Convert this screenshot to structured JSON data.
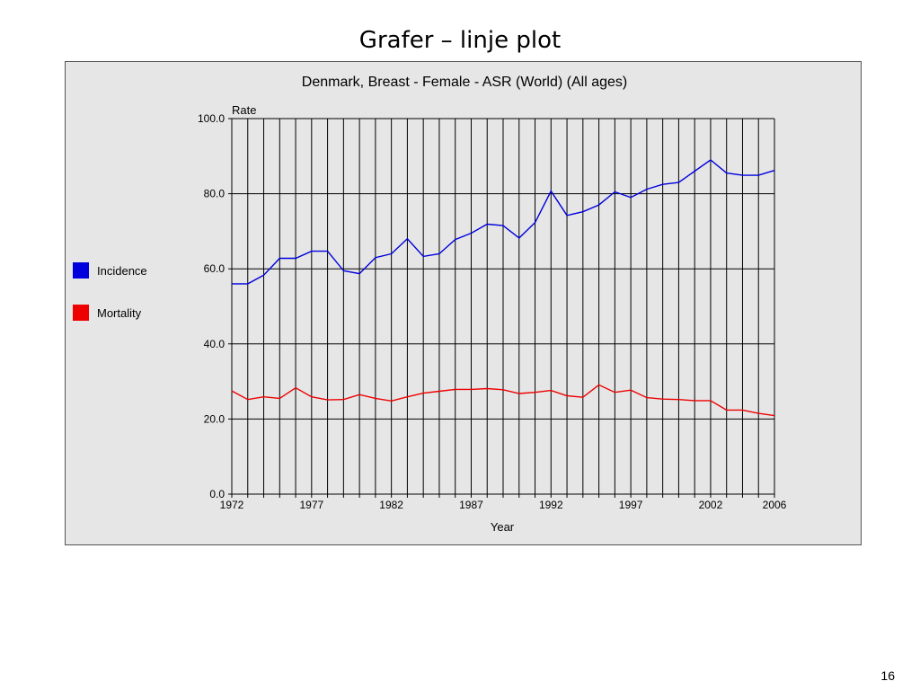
{
  "slide": {
    "title": "Grafer – linje plot",
    "page_number": "16"
  },
  "colors": {
    "incidence": "#0000dd",
    "mortality": "#ee0000",
    "panel_bg": "#e6e6e6",
    "grid": "#000000"
  },
  "chart_data": {
    "type": "line",
    "title": "Denmark, Breast - Female - ASR (World) (All ages)",
    "xlabel": "Year",
    "ylabel": "Rate",
    "x": [
      1972,
      1973,
      1974,
      1975,
      1976,
      1977,
      1978,
      1979,
      1980,
      1981,
      1982,
      1983,
      1984,
      1985,
      1986,
      1987,
      1988,
      1989,
      1990,
      1991,
      1992,
      1993,
      1994,
      1995,
      1996,
      1997,
      1998,
      1999,
      2000,
      2001,
      2002,
      2003,
      2004,
      2005,
      2006
    ],
    "x_ticks": [
      "1972",
      "1977",
      "1982",
      "1987",
      "1992",
      "1997",
      "2002",
      "2006"
    ],
    "y_ticks": [
      "0.0",
      "20.0",
      "40.0",
      "60.0",
      "80.0",
      "100.0"
    ],
    "xlim": [
      1972,
      2006
    ],
    "ylim": [
      0,
      100
    ],
    "grid": true,
    "legend_position": "left",
    "series": [
      {
        "name": "Incidence",
        "color": "#0000dd",
        "values": [
          56.0,
          56.0,
          58.3,
          62.8,
          62.8,
          64.7,
          64.7,
          59.5,
          58.7,
          63.0,
          64.0,
          68.0,
          63.3,
          64.0,
          67.8,
          69.5,
          71.9,
          71.5,
          68.2,
          72.3,
          80.7,
          74.2,
          75.2,
          77.0,
          80.5,
          79.0,
          81.2,
          82.5,
          83.0,
          86.0,
          89.0,
          85.5,
          84.9,
          84.9,
          86.2
        ]
      },
      {
        "name": "Mortality",
        "color": "#ee0000",
        "values": [
          27.5,
          25.2,
          25.9,
          25.5,
          28.3,
          25.9,
          25.1,
          25.2,
          26.5,
          25.5,
          24.8,
          25.9,
          26.9,
          27.4,
          27.9,
          27.9,
          28.1,
          27.8,
          26.8,
          27.1,
          27.6,
          26.2,
          25.8,
          29.1,
          27.1,
          27.7,
          25.7,
          25.3,
          25.2,
          24.9,
          24.9,
          22.4,
          22.4,
          21.5,
          20.9
        ]
      }
    ]
  }
}
